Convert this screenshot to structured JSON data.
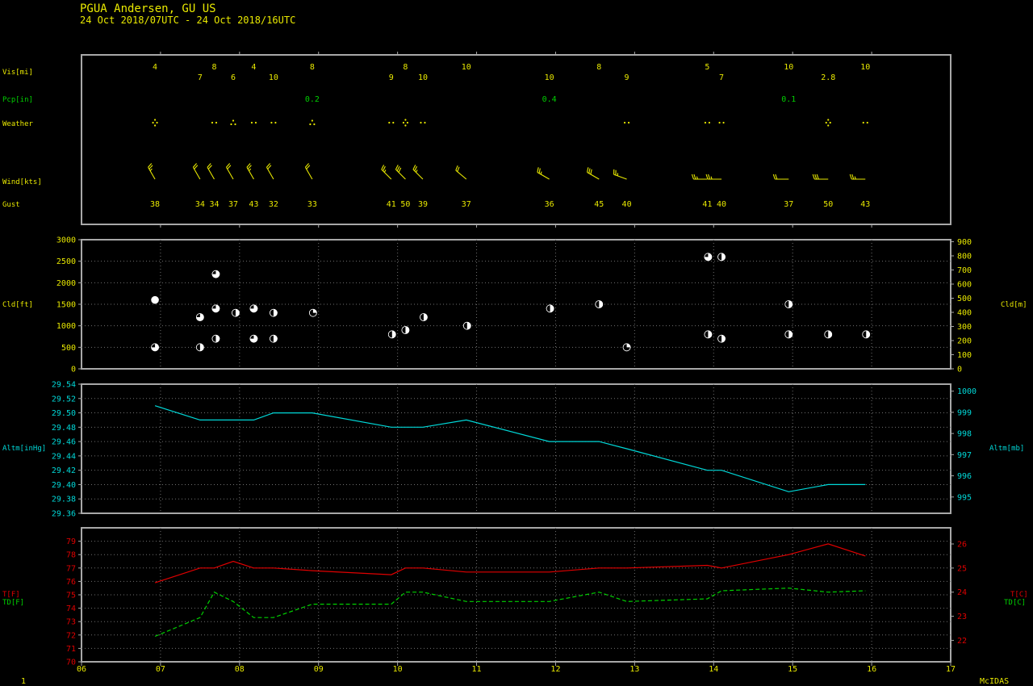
{
  "header": {
    "station": "PGUA  Andersen, GU US",
    "period": "24 Oct 2018/07UTC - 24 Oct 2018/16UTC"
  },
  "footer": {
    "left": "1",
    "right": "McIDAS"
  },
  "colors": {
    "yellow": "#e8e800",
    "green": "#00d000",
    "cyan": "#00d8d8",
    "red": "#e00000",
    "frame": "#a8a8a8",
    "grid": "#707070"
  },
  "x_axis": {
    "min": 6,
    "max": 17,
    "tick_labels": [
      "06",
      "07",
      "08",
      "09",
      "10",
      "11",
      "12",
      "13",
      "14",
      "15",
      "16",
      "17"
    ]
  },
  "obs_panel": {
    "labels": {
      "vis": "Vis[mi]",
      "pcp": "Pcp[in]",
      "weather": "Weather",
      "wind": "Wind[kts]",
      "gust": "Gust"
    },
    "vis": [
      {
        "t": 6.93,
        "v": "4",
        "row": 0
      },
      {
        "t": 7.5,
        "v": "7",
        "row": 1
      },
      {
        "t": 7.68,
        "v": "8",
        "row": 0
      },
      {
        "t": 7.92,
        "v": "6",
        "row": 1
      },
      {
        "t": 8.18,
        "v": "4",
        "row": 0
      },
      {
        "t": 8.43,
        "v": "10",
        "row": 1
      },
      {
        "t": 8.92,
        "v": "8",
        "row": 0
      },
      {
        "t": 9.92,
        "v": "9",
        "row": 1
      },
      {
        "t": 10.1,
        "v": "8",
        "row": 0
      },
      {
        "t": 10.32,
        "v": "10",
        "row": 1
      },
      {
        "t": 10.87,
        "v": "10",
        "row": 0
      },
      {
        "t": 11.92,
        "v": "10",
        "row": 1
      },
      {
        "t": 12.55,
        "v": "8",
        "row": 0
      },
      {
        "t": 12.9,
        "v": "9",
        "row": 1
      },
      {
        "t": 13.92,
        "v": "5",
        "row": 0
      },
      {
        "t": 14.1,
        "v": "7",
        "row": 1
      },
      {
        "t": 14.95,
        "v": "10",
        "row": 0
      },
      {
        "t": 15.45,
        "v": "2.8",
        "row": 1
      },
      {
        "t": 15.92,
        "v": "10",
        "row": 0
      }
    ],
    "pcp": [
      {
        "t": 8.92,
        "v": "0.2"
      },
      {
        "t": 11.92,
        "v": "0.4"
      },
      {
        "t": 14.95,
        "v": "0.1"
      }
    ],
    "weather": [
      {
        "t": 6.93,
        "s": "+RA"
      },
      {
        "t": 7.68,
        "s": "RA"
      },
      {
        "t": 7.92,
        "s": "-RA"
      },
      {
        "t": 8.18,
        "s": "RA"
      },
      {
        "t": 8.43,
        "s": "RA"
      },
      {
        "t": 8.92,
        "s": "-RA"
      },
      {
        "t": 9.92,
        "s": "RA"
      },
      {
        "t": 10.1,
        "s": "+RA"
      },
      {
        "t": 10.32,
        "s": "RA"
      },
      {
        "t": 12.9,
        "s": "RA"
      },
      {
        "t": 13.92,
        "s": "RA"
      },
      {
        "t": 14.1,
        "s": "RA"
      },
      {
        "t": 15.45,
        "s": "+RA"
      },
      {
        "t": 15.92,
        "s": "RA"
      }
    ],
    "wind": [
      {
        "t": 6.93,
        "dir": 330,
        "spd": 25
      },
      {
        "t": 7.5,
        "dir": 330,
        "spd": 20
      },
      {
        "t": 7.68,
        "dir": 330,
        "spd": 20
      },
      {
        "t": 7.92,
        "dir": 330,
        "spd": 20
      },
      {
        "t": 8.18,
        "dir": 330,
        "spd": 25
      },
      {
        "t": 8.43,
        "dir": 330,
        "spd": 20
      },
      {
        "t": 8.92,
        "dir": 330,
        "spd": 20
      },
      {
        "t": 9.92,
        "dir": 315,
        "spd": 25
      },
      {
        "t": 10.1,
        "dir": 315,
        "spd": 30
      },
      {
        "t": 10.32,
        "dir": 315,
        "spd": 25
      },
      {
        "t": 10.87,
        "dir": 310,
        "spd": 20
      },
      {
        "t": 11.92,
        "dir": 300,
        "spd": 25
      },
      {
        "t": 12.55,
        "dir": 300,
        "spd": 30
      },
      {
        "t": 12.9,
        "dir": 290,
        "spd": 25
      },
      {
        "t": 13.92,
        "dir": 270,
        "spd": 25
      },
      {
        "t": 14.1,
        "dir": 270,
        "spd": 25
      },
      {
        "t": 14.95,
        "dir": 270,
        "spd": 20
      },
      {
        "t": 15.45,
        "dir": 270,
        "spd": 30
      },
      {
        "t": 15.92,
        "dir": 270,
        "spd": 25
      }
    ],
    "gust": [
      {
        "t": 6.93,
        "v": "38"
      },
      {
        "t": 7.5,
        "v": "34"
      },
      {
        "t": 7.68,
        "v": "34"
      },
      {
        "t": 7.92,
        "v": "37"
      },
      {
        "t": 8.18,
        "v": "43"
      },
      {
        "t": 8.43,
        "v": "32"
      },
      {
        "t": 8.92,
        "v": "33"
      },
      {
        "t": 9.92,
        "v": "41"
      },
      {
        "t": 10.1,
        "v": "50"
      },
      {
        "t": 10.32,
        "v": "39"
      },
      {
        "t": 10.87,
        "v": "37"
      },
      {
        "t": 11.92,
        "v": "36"
      },
      {
        "t": 12.55,
        "v": "45"
      },
      {
        "t": 12.9,
        "v": "40"
      },
      {
        "t": 13.92,
        "v": "41"
      },
      {
        "t": 14.1,
        "v": "40"
      },
      {
        "t": 14.95,
        "v": "37"
      },
      {
        "t": 15.45,
        "v": "50"
      },
      {
        "t": 15.92,
        "v": "43"
      }
    ]
  },
  "chart_data": [
    {
      "type": "scatter",
      "ylabel": "Cld[ft]",
      "y2label": "Cld[m]",
      "ylim": [
        0,
        3000
      ],
      "y2lim": [
        0,
        914.4
      ],
      "yticks": [
        "0",
        "500",
        "1000",
        "1500",
        "2000",
        "2500",
        "3000"
      ],
      "y2ticks": [
        "0",
        "100",
        "200",
        "300",
        "400",
        "500",
        "600",
        "700",
        "800",
        "900"
      ],
      "points": [
        {
          "t": 6.93,
          "ft": 1600,
          "cover": "OVC"
        },
        {
          "t": 6.93,
          "ft": 500,
          "cover": "BKN"
        },
        {
          "t": 7.5,
          "ft": 1200,
          "cover": "BKN"
        },
        {
          "t": 7.5,
          "ft": 500,
          "cover": "SCT"
        },
        {
          "t": 7.7,
          "ft": 2200,
          "cover": "BKN"
        },
        {
          "t": 7.7,
          "ft": 1400,
          "cover": "BKN"
        },
        {
          "t": 7.7,
          "ft": 700,
          "cover": "SCT"
        },
        {
          "t": 7.95,
          "ft": 1300,
          "cover": "SCT"
        },
        {
          "t": 8.18,
          "ft": 1400,
          "cover": "BKN"
        },
        {
          "t": 8.18,
          "ft": 700,
          "cover": "BKN"
        },
        {
          "t": 8.43,
          "ft": 1300,
          "cover": "SCT"
        },
        {
          "t": 8.43,
          "ft": 700,
          "cover": "SCT"
        },
        {
          "t": 8.93,
          "ft": 1300,
          "cover": "FEW"
        },
        {
          "t": 9.93,
          "ft": 800,
          "cover": "SCT"
        },
        {
          "t": 10.1,
          "ft": 900,
          "cover": "SCT"
        },
        {
          "t": 10.33,
          "ft": 1200,
          "cover": "SCT"
        },
        {
          "t": 10.88,
          "ft": 1000,
          "cover": "SCT"
        },
        {
          "t": 11.93,
          "ft": 1400,
          "cover": "SCT"
        },
        {
          "t": 12.55,
          "ft": 1500,
          "cover": "SCT"
        },
        {
          "t": 12.9,
          "ft": 500,
          "cover": "FEW"
        },
        {
          "t": 13.93,
          "ft": 2600,
          "cover": "BKN"
        },
        {
          "t": 13.93,
          "ft": 800,
          "cover": "SCT"
        },
        {
          "t": 14.1,
          "ft": 2600,
          "cover": "SCT"
        },
        {
          "t": 14.1,
          "ft": 700,
          "cover": "SCT"
        },
        {
          "t": 14.95,
          "ft": 1500,
          "cover": "SCT"
        },
        {
          "t": 14.95,
          "ft": 800,
          "cover": "SCT"
        },
        {
          "t": 15.45,
          "ft": 800,
          "cover": "SCT"
        },
        {
          "t": 15.93,
          "ft": 800,
          "cover": "SCT"
        }
      ]
    },
    {
      "type": "line",
      "ylabel": "Altm[inHg]",
      "y2label": "Altm[mb]",
      "ylim": [
        29.36,
        29.54
      ],
      "y2lim": [
        994.23,
        1000.33
      ],
      "yticks": [
        "29.36",
        "29.38",
        "29.40",
        "29.42",
        "29.44",
        "29.46",
        "29.48",
        "29.50",
        "29.52",
        "29.54"
      ],
      "y2ticks": [
        "995",
        "996",
        "997",
        "998",
        "999",
        "1000"
      ],
      "x": [
        6.93,
        7.5,
        7.68,
        7.92,
        8.18,
        8.43,
        8.92,
        9.92,
        10.1,
        10.32,
        10.87,
        11.92,
        12.55,
        12.9,
        13.92,
        14.1,
        14.95,
        15.45,
        15.92
      ],
      "values": [
        29.51,
        29.49,
        29.49,
        29.49,
        29.49,
        29.5,
        29.5,
        29.48,
        29.48,
        29.48,
        29.49,
        29.46,
        29.46,
        29.45,
        29.42,
        29.42,
        29.39,
        29.4,
        29.4
      ]
    },
    {
      "type": "line",
      "ylabel": "T[F]",
      "ylabel2": "TD[F]",
      "y2label": "T[C]",
      "y2label2": "TD[C]",
      "ylim": [
        70,
        80
      ],
      "y2lim": [
        21.11,
        26.67
      ],
      "yticks": [
        "70",
        "71",
        "72",
        "73",
        "74",
        "75",
        "76",
        "77",
        "78",
        "79"
      ],
      "y2ticks": [
        "22",
        "23",
        "24",
        "25",
        "26"
      ],
      "x": [
        6.93,
        7.5,
        7.68,
        7.92,
        8.18,
        8.43,
        8.92,
        9.92,
        10.1,
        10.32,
        10.87,
        11.92,
        12.55,
        12.9,
        13.92,
        14.1,
        14.95,
        15.45,
        15.92
      ],
      "series": [
        {
          "values": [
            75.9,
            77.0,
            77.0,
            77.5,
            77.0,
            77.0,
            76.8,
            76.5,
            77.0,
            77.0,
            76.7,
            76.7,
            77.0,
            77.0,
            77.2,
            77.0,
            78.0,
            78.8,
            77.9
          ]
        },
        {
          "values": [
            71.9,
            73.3,
            75.2,
            74.5,
            73.3,
            73.3,
            74.3,
            74.3,
            75.2,
            75.2,
            74.5,
            74.5,
            75.2,
            74.5,
            74.7,
            75.3,
            75.5,
            75.2,
            75.3
          ]
        }
      ]
    }
  ]
}
